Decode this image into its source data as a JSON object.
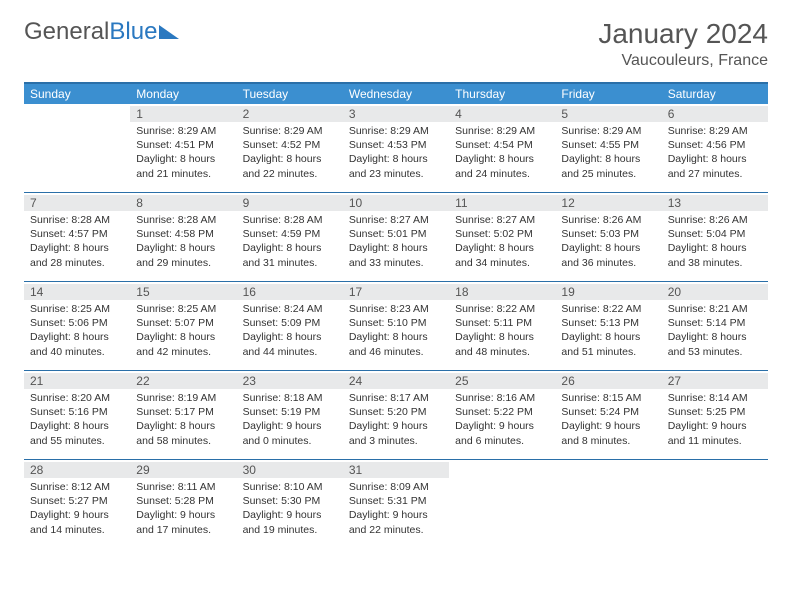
{
  "logo": {
    "text_left": "General",
    "text_right": "Blue"
  },
  "title": "January 2024",
  "subtitle": "Vaucouleurs, France",
  "colors": {
    "header_bg": "#3b8fd0",
    "border": "#2a6fa8",
    "daynum_bg": "#e8e9ea",
    "text_gray": "#555555",
    "text_body": "#333333",
    "white": "#ffffff"
  },
  "day_names": [
    "Sunday",
    "Monday",
    "Tuesday",
    "Wednesday",
    "Thursday",
    "Friday",
    "Saturday"
  ],
  "weeks": [
    [
      {
        "empty": true
      },
      {
        "n": "1",
        "sunrise": "8:29 AM",
        "sunset": "4:51 PM",
        "day_h": "8",
        "day_m": "21"
      },
      {
        "n": "2",
        "sunrise": "8:29 AM",
        "sunset": "4:52 PM",
        "day_h": "8",
        "day_m": "22"
      },
      {
        "n": "3",
        "sunrise": "8:29 AM",
        "sunset": "4:53 PM",
        "day_h": "8",
        "day_m": "23"
      },
      {
        "n": "4",
        "sunrise": "8:29 AM",
        "sunset": "4:54 PM",
        "day_h": "8",
        "day_m": "24"
      },
      {
        "n": "5",
        "sunrise": "8:29 AM",
        "sunset": "4:55 PM",
        "day_h": "8",
        "day_m": "25"
      },
      {
        "n": "6",
        "sunrise": "8:29 AM",
        "sunset": "4:56 PM",
        "day_h": "8",
        "day_m": "27"
      }
    ],
    [
      {
        "n": "7",
        "sunrise": "8:28 AM",
        "sunset": "4:57 PM",
        "day_h": "8",
        "day_m": "28"
      },
      {
        "n": "8",
        "sunrise": "8:28 AM",
        "sunset": "4:58 PM",
        "day_h": "8",
        "day_m": "29"
      },
      {
        "n": "9",
        "sunrise": "8:28 AM",
        "sunset": "4:59 PM",
        "day_h": "8",
        "day_m": "31"
      },
      {
        "n": "10",
        "sunrise": "8:27 AM",
        "sunset": "5:01 PM",
        "day_h": "8",
        "day_m": "33"
      },
      {
        "n": "11",
        "sunrise": "8:27 AM",
        "sunset": "5:02 PM",
        "day_h": "8",
        "day_m": "34"
      },
      {
        "n": "12",
        "sunrise": "8:26 AM",
        "sunset": "5:03 PM",
        "day_h": "8",
        "day_m": "36"
      },
      {
        "n": "13",
        "sunrise": "8:26 AM",
        "sunset": "5:04 PM",
        "day_h": "8",
        "day_m": "38"
      }
    ],
    [
      {
        "n": "14",
        "sunrise": "8:25 AM",
        "sunset": "5:06 PM",
        "day_h": "8",
        "day_m": "40"
      },
      {
        "n": "15",
        "sunrise": "8:25 AM",
        "sunset": "5:07 PM",
        "day_h": "8",
        "day_m": "42"
      },
      {
        "n": "16",
        "sunrise": "8:24 AM",
        "sunset": "5:09 PM",
        "day_h": "8",
        "day_m": "44"
      },
      {
        "n": "17",
        "sunrise": "8:23 AM",
        "sunset": "5:10 PM",
        "day_h": "8",
        "day_m": "46"
      },
      {
        "n": "18",
        "sunrise": "8:22 AM",
        "sunset": "5:11 PM",
        "day_h": "8",
        "day_m": "48"
      },
      {
        "n": "19",
        "sunrise": "8:22 AM",
        "sunset": "5:13 PM",
        "day_h": "8",
        "day_m": "51"
      },
      {
        "n": "20",
        "sunrise": "8:21 AM",
        "sunset": "5:14 PM",
        "day_h": "8",
        "day_m": "53"
      }
    ],
    [
      {
        "n": "21",
        "sunrise": "8:20 AM",
        "sunset": "5:16 PM",
        "day_h": "8",
        "day_m": "55"
      },
      {
        "n": "22",
        "sunrise": "8:19 AM",
        "sunset": "5:17 PM",
        "day_h": "8",
        "day_m": "58"
      },
      {
        "n": "23",
        "sunrise": "8:18 AM",
        "sunset": "5:19 PM",
        "day_h": "9",
        "day_m": "0"
      },
      {
        "n": "24",
        "sunrise": "8:17 AM",
        "sunset": "5:20 PM",
        "day_h": "9",
        "day_m": "3"
      },
      {
        "n": "25",
        "sunrise": "8:16 AM",
        "sunset": "5:22 PM",
        "day_h": "9",
        "day_m": "6"
      },
      {
        "n": "26",
        "sunrise": "8:15 AM",
        "sunset": "5:24 PM",
        "day_h": "9",
        "day_m": "8"
      },
      {
        "n": "27",
        "sunrise": "8:14 AM",
        "sunset": "5:25 PM",
        "day_h": "9",
        "day_m": "11"
      }
    ],
    [
      {
        "n": "28",
        "sunrise": "8:12 AM",
        "sunset": "5:27 PM",
        "day_h": "9",
        "day_m": "14"
      },
      {
        "n": "29",
        "sunrise": "8:11 AM",
        "sunset": "5:28 PM",
        "day_h": "9",
        "day_m": "17"
      },
      {
        "n": "30",
        "sunrise": "8:10 AM",
        "sunset": "5:30 PM",
        "day_h": "9",
        "day_m": "19"
      },
      {
        "n": "31",
        "sunrise": "8:09 AM",
        "sunset": "5:31 PM",
        "day_h": "9",
        "day_m": "22"
      },
      {
        "empty": true
      },
      {
        "empty": true
      },
      {
        "empty": true
      }
    ]
  ],
  "labels": {
    "sunrise": "Sunrise:",
    "sunset": "Sunset:",
    "daylight": "Daylight:",
    "hours": "hours",
    "and": "and",
    "minutes": "minutes."
  }
}
